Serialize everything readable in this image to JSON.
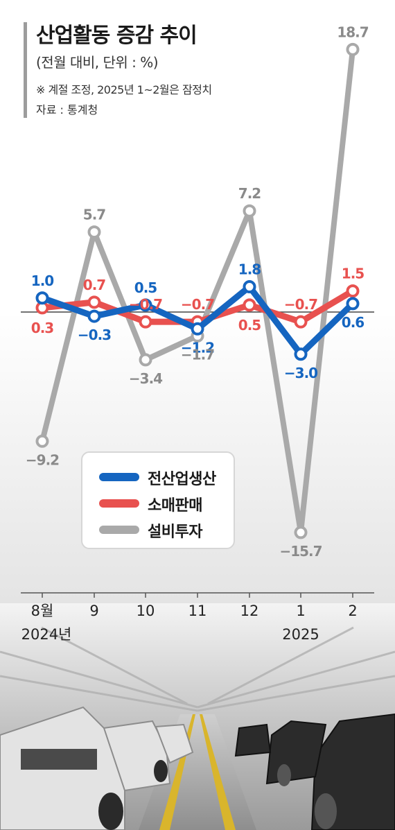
{
  "header": {
    "title": "산업활동 증감 추이",
    "subtitle": "(전월 대비, 단위 : %)",
    "note": "※ 계절 조정, 2025년 1~2월은 잠정치",
    "source": "자료 : 통계청"
  },
  "colors": {
    "production": "#1565c0",
    "retail": "#e8514f",
    "investment": "#a9a9a9",
    "text_gray": "#8a8a8a"
  },
  "chart_data": {
    "type": "line",
    "categories": [
      "8월",
      "9",
      "10",
      "11",
      "12",
      "1",
      "2"
    ],
    "year_labels": [
      "2024년",
      "",
      "",
      "",
      "",
      "2025",
      ""
    ],
    "ylim": [
      -16,
      19
    ],
    "series": [
      {
        "name": "전산업생산",
        "values": [
          1.0,
          -0.3,
          0.5,
          -1.2,
          1.8,
          -3.0,
          0.6
        ],
        "labels": [
          "1.0",
          "−0.3",
          "0.5",
          "−1.2",
          "1.8",
          "−3.0",
          "0.6"
        ]
      },
      {
        "name": "소매판매",
        "values": [
          0.3,
          0.7,
          -0.7,
          -0.7,
          0.5,
          -0.7,
          1.5
        ],
        "labels": [
          "0.3",
          "0.7",
          "−0.7",
          "−0.7",
          "0.5",
          "−0.7",
          "1.5"
        ]
      },
      {
        "name": "설비투자",
        "values": [
          -9.2,
          5.7,
          -3.4,
          -1.7,
          7.2,
          -15.7,
          18.7
        ],
        "labels": [
          "−9.2",
          "5.7",
          "−3.4",
          "−1.7",
          "7.2",
          "−15.7",
          "18.7"
        ]
      }
    ]
  }
}
